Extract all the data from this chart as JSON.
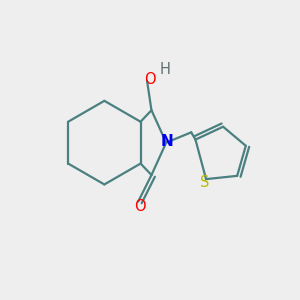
{
  "background_color": "#eeeeee",
  "bond_color": "#4a8080",
  "bond_lw": 1.6,
  "atom_colors": {
    "N": "#0000ee",
    "O_ketone": "#ff0000",
    "O_hydroxyl": "#ff0000",
    "S": "#bbbb00",
    "H": "#607070"
  },
  "font_size": 10.5,
  "fig_size": [
    3.0,
    3.0
  ],
  "dpi": 100,
  "xlim": [
    0,
    10
  ],
  "ylim": [
    0,
    10
  ]
}
